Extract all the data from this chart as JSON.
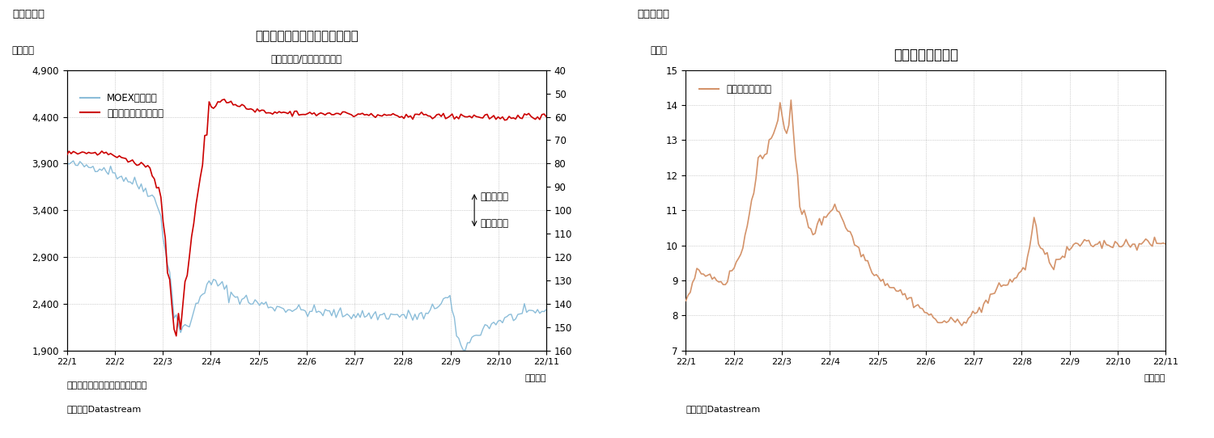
{
  "fig4": {
    "title": "ロシアの株価指数と為替レート",
    "title_suffix": "（ルーブル/ドル、逆目盛）",
    "label_left": "（指数）",
    "fig_label": "（図表４）",
    "note1": "（注）為替レートは逆目盛で表示",
    "note2": "（資料）Datastream",
    "date_label": "（日次）",
    "ylim_left": [
      1900,
      4900
    ],
    "ylim_right": [
      40,
      160
    ],
    "yticks_left": [
      1900,
      2400,
      2900,
      3400,
      3900,
      4400,
      4900
    ],
    "yticks_right": [
      40,
      50,
      60,
      70,
      80,
      90,
      100,
      110,
      120,
      130,
      140,
      150,
      160
    ],
    "xtick_labels": [
      "22/1",
      "22/2",
      "22/3",
      "22/4",
      "22/5",
      "22/6",
      "22/7",
      "22/8",
      "22/9",
      "22/10",
      "22/11"
    ],
    "legend_moex": "MOEX株価指数",
    "legend_fx": "対ドルレート（右軸）",
    "annotation_high": "ルーブル高",
    "annotation_low": "ルーブル安",
    "color_moex": "#8BBDD9",
    "color_fx": "#CC0000",
    "background": "#ffffff",
    "grid_color": "#aaaaaa"
  },
  "fig5": {
    "title": "ロシアの長期金利",
    "label_left": "（％）",
    "fig_label": "（図表５）",
    "note": "（資料）Datastream",
    "date_label": "（日次）",
    "ylim": [
      7,
      15
    ],
    "yticks": [
      7,
      8,
      9,
      10,
      11,
      12,
      13,
      14,
      15
    ],
    "xtick_labels": [
      "22/1",
      "22/2",
      "22/3",
      "22/4",
      "22/5",
      "22/6",
      "22/7",
      "22/8",
      "22/9",
      "22/10",
      "22/11"
    ],
    "legend": "長期金利（右軸）",
    "color": "#D4936A",
    "background": "#ffffff",
    "grid_color": "#aaaaaa"
  }
}
